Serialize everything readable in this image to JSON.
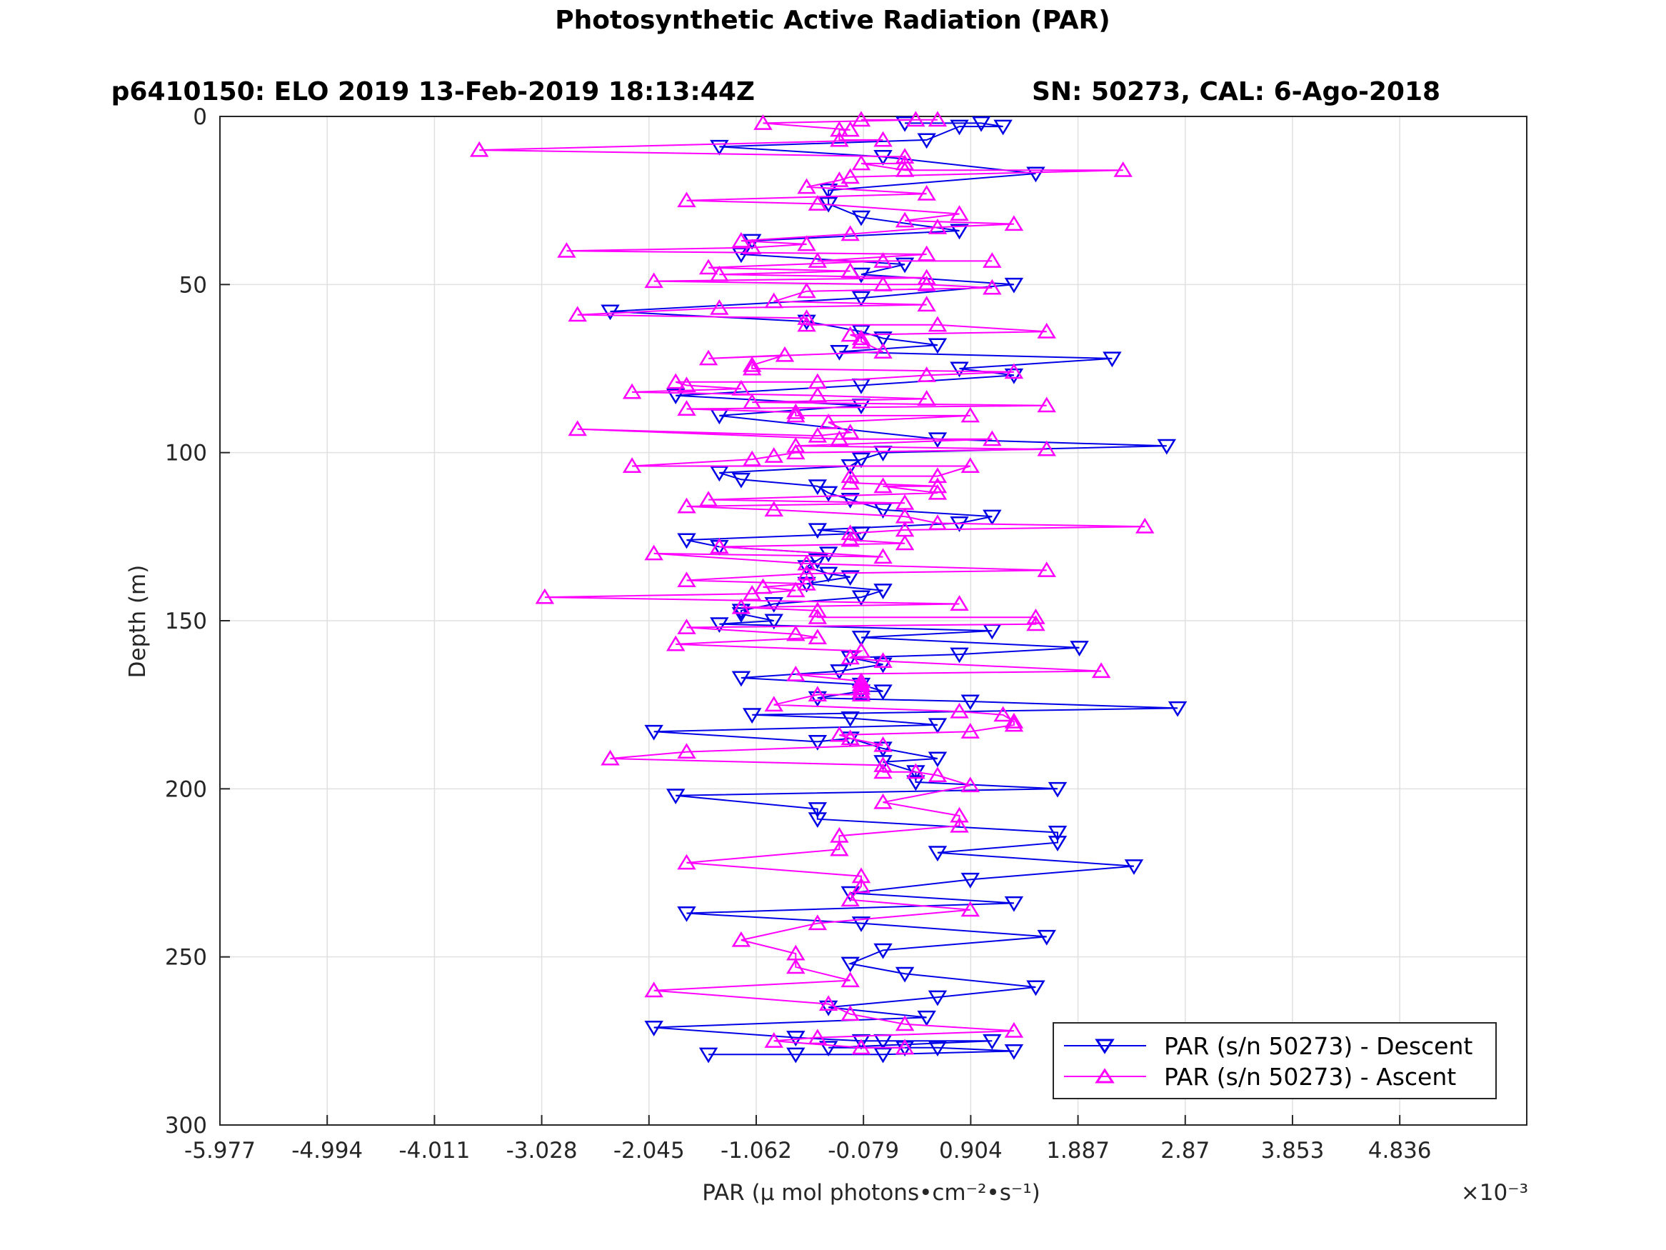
{
  "chart_data": {
    "type": "line",
    "title": "Photosynthetic Active Radiation (PAR)",
    "subtitle_left": "p6410150: ELO 2019 13-Feb-2019 18:13:44Z",
    "subtitle_right": "SN: 50273, CAL: 6-Ago-2018",
    "xlabel": "PAR (μ mol photons•cm⁻²•s⁻¹)",
    "ylabel": "Depth (m)",
    "x_multiplier": "×10⁻³",
    "xlim": [
      -5.977,
      6.0
    ],
    "ylim": [
      0,
      300
    ],
    "y_reversed": true,
    "grid": true,
    "legend_position": "bottom-right",
    "x_tick_labels": [
      "-5.977",
      "-4.994",
      "-4.011",
      "-3.028",
      "-2.045",
      "-1.062",
      "-0.079",
      "0.904",
      "1.887",
      "2.87",
      "3.853",
      "4.836"
    ],
    "y_tick_labels": [
      "0",
      "50",
      "100",
      "150",
      "200",
      "250",
      "300"
    ],
    "series": [
      {
        "name": "PAR (s/n 50273) - Descent",
        "color": "#0000e6",
        "marker": "triangle-down",
        "points": [
          [
            0.3,
            2
          ],
          [
            1.0,
            2
          ],
          [
            1.2,
            3
          ],
          [
            0.8,
            3
          ],
          [
            0.5,
            7
          ],
          [
            -1.4,
            9
          ],
          [
            0.1,
            12
          ],
          [
            1.5,
            17
          ],
          [
            -0.4,
            22
          ],
          [
            -0.4,
            26
          ],
          [
            -0.1,
            30
          ],
          [
            0.8,
            34
          ],
          [
            -1.1,
            37
          ],
          [
            -1.2,
            41
          ],
          [
            0.3,
            44
          ],
          [
            -0.1,
            47
          ],
          [
            1.3,
            50
          ],
          [
            -0.1,
            54
          ],
          [
            -2.4,
            58
          ],
          [
            -0.6,
            61
          ],
          [
            -0.1,
            64
          ],
          [
            0.1,
            66
          ],
          [
            0.6,
            68
          ],
          [
            -0.3,
            70
          ],
          [
            2.2,
            72
          ],
          [
            0.8,
            75
          ],
          [
            1.3,
            77
          ],
          [
            -0.1,
            80
          ],
          [
            -1.8,
            83
          ],
          [
            -0.1,
            86
          ],
          [
            -1.4,
            89
          ],
          [
            0.6,
            96
          ],
          [
            2.7,
            98
          ],
          [
            0.1,
            100
          ],
          [
            -0.1,
            102
          ],
          [
            -0.2,
            104
          ],
          [
            -1.4,
            106
          ],
          [
            -1.2,
            108
          ],
          [
            -0.5,
            110
          ],
          [
            -0.4,
            112
          ],
          [
            -0.2,
            114
          ],
          [
            0.1,
            117
          ],
          [
            1.1,
            119
          ],
          [
            0.8,
            121
          ],
          [
            -0.5,
            123
          ],
          [
            -0.1,
            124
          ],
          [
            -1.7,
            126
          ],
          [
            -1.4,
            128
          ],
          [
            -0.4,
            130
          ],
          [
            -0.5,
            132
          ],
          [
            -0.6,
            134
          ],
          [
            -0.4,
            136
          ],
          [
            -0.2,
            137
          ],
          [
            -0.6,
            139
          ],
          [
            0.1,
            141
          ],
          [
            -0.1,
            143
          ],
          [
            -0.9,
            145
          ],
          [
            -1.2,
            147
          ],
          [
            -1.2,
            148
          ],
          [
            -0.9,
            150
          ],
          [
            -1.4,
            151
          ],
          [
            1.1,
            153
          ],
          [
            -0.1,
            155
          ],
          [
            1.9,
            158
          ],
          [
            0.8,
            160
          ],
          [
            -0.2,
            161
          ],
          [
            0.1,
            163
          ],
          [
            -0.3,
            165
          ],
          [
            -1.2,
            167
          ],
          [
            -0.1,
            169
          ],
          [
            0.1,
            171
          ],
          [
            -0.1,
            171
          ],
          [
            -0.5,
            173
          ],
          [
            0.9,
            174
          ],
          [
            2.8,
            176
          ],
          [
            -1.1,
            178
          ],
          [
            -0.2,
            179
          ],
          [
            0.6,
            181
          ],
          [
            -2.0,
            183
          ],
          [
            -0.5,
            186
          ],
          [
            -0.2,
            185
          ],
          [
            0.1,
            188
          ],
          [
            0.6,
            191
          ],
          [
            0.1,
            192
          ],
          [
            0.4,
            195
          ],
          [
            0.4,
            198
          ],
          [
            1.7,
            200
          ],
          [
            -1.8,
            202
          ],
          [
            -0.5,
            206
          ],
          [
            -0.5,
            209
          ],
          [
            1.7,
            213
          ],
          [
            1.7,
            216
          ],
          [
            0.6,
            219
          ],
          [
            2.4,
            223
          ],
          [
            0.9,
            227
          ],
          [
            -0.2,
            231
          ],
          [
            1.3,
            234
          ],
          [
            -1.7,
            237
          ],
          [
            -0.1,
            240
          ],
          [
            1.6,
            244
          ],
          [
            0.1,
            248
          ],
          [
            -0.2,
            252
          ],
          [
            0.3,
            255
          ],
          [
            1.5,
            259
          ],
          [
            0.6,
            262
          ],
          [
            -0.4,
            265
          ],
          [
            0.5,
            268
          ],
          [
            -2.0,
            271
          ],
          [
            -0.7,
            274
          ],
          [
            -0.1,
            275
          ],
          [
            0.1,
            275
          ],
          [
            1.1,
            275
          ],
          [
            -0.4,
            277
          ],
          [
            0.3,
            277
          ],
          [
            0.6,
            277
          ],
          [
            1.3,
            278
          ],
          [
            0.1,
            279
          ],
          [
            -0.7,
            279
          ],
          [
            -1.5,
            279
          ]
        ]
      },
      {
        "name": "PAR (s/n 50273) - Ascent",
        "color": "#ff00ff",
        "marker": "triangle-up",
        "points": [
          [
            0.6,
            1
          ],
          [
            -0.1,
            1
          ],
          [
            0.4,
            1
          ],
          [
            -1.0,
            2
          ],
          [
            -0.2,
            4
          ],
          [
            -0.3,
            4
          ],
          [
            -0.3,
            7
          ],
          [
            0.1,
            7
          ],
          [
            -3.6,
            10
          ],
          [
            0.3,
            12
          ],
          [
            0.3,
            14
          ],
          [
            -0.1,
            14
          ],
          [
            0.3,
            16
          ],
          [
            2.3,
            16
          ],
          [
            -0.2,
            18
          ],
          [
            -0.3,
            19
          ],
          [
            -0.6,
            21
          ],
          [
            0.5,
            23
          ],
          [
            -1.7,
            25
          ],
          [
            -0.5,
            26
          ],
          [
            0.8,
            29
          ],
          [
            0.3,
            31
          ],
          [
            1.3,
            32
          ],
          [
            0.6,
            33
          ],
          [
            -0.2,
            35
          ],
          [
            -1.2,
            37
          ],
          [
            -0.6,
            38
          ],
          [
            -1.1,
            39
          ],
          [
            -2.8,
            40
          ],
          [
            0.5,
            41
          ],
          [
            -0.5,
            43
          ],
          [
            1.1,
            43
          ],
          [
            0.1,
            43
          ],
          [
            -1.5,
            45
          ],
          [
            -0.2,
            46
          ],
          [
            -1.4,
            47
          ],
          [
            0.5,
            48
          ],
          [
            -2.0,
            49
          ],
          [
            0.1,
            50
          ],
          [
            0.5,
            50
          ],
          [
            1.1,
            51
          ],
          [
            -0.6,
            52
          ],
          [
            -0.9,
            55
          ],
          [
            0.5,
            56
          ],
          [
            -1.4,
            57
          ],
          [
            -2.7,
            59
          ],
          [
            -0.6,
            60
          ],
          [
            -0.6,
            62
          ],
          [
            0.6,
            62
          ],
          [
            1.6,
            64
          ],
          [
            -0.2,
            65
          ],
          [
            -0.1,
            66
          ],
          [
            -0.1,
            67
          ],
          [
            0.1,
            70
          ],
          [
            -1.5,
            72
          ],
          [
            -0.8,
            71
          ],
          [
            -1.1,
            74
          ],
          [
            -1.1,
            75
          ],
          [
            1.3,
            76
          ],
          [
            0.5,
            77
          ],
          [
            -0.5,
            79
          ],
          [
            -1.8,
            79
          ],
          [
            -1.7,
            80
          ],
          [
            -1.2,
            81
          ],
          [
            -2.2,
            82
          ],
          [
            -0.5,
            83
          ],
          [
            0.5,
            84
          ],
          [
            -1.1,
            85
          ],
          [
            1.6,
            86
          ],
          [
            -1.7,
            87
          ],
          [
            -0.7,
            88
          ],
          [
            -0.7,
            89
          ],
          [
            0.9,
            89
          ],
          [
            -0.4,
            91
          ],
          [
            -0.2,
            94
          ],
          [
            -0.5,
            95
          ],
          [
            -2.7,
            93
          ],
          [
            -0.3,
            96
          ],
          [
            1.1,
            96
          ],
          [
            -0.7,
            98
          ],
          [
            1.6,
            99
          ],
          [
            -0.7,
            100
          ],
          [
            -0.9,
            101
          ],
          [
            -1.1,
            102
          ],
          [
            -2.2,
            104
          ],
          [
            0.9,
            104
          ],
          [
            0.6,
            107
          ],
          [
            -0.2,
            107
          ],
          [
            -0.2,
            109
          ],
          [
            0.6,
            110
          ],
          [
            0.1,
            110
          ],
          [
            0.6,
            112
          ],
          [
            -1.5,
            114
          ],
          [
            0.3,
            115
          ],
          [
            -1.7,
            116
          ],
          [
            -0.9,
            117
          ],
          [
            0.3,
            119
          ],
          [
            0.6,
            121
          ],
          [
            2.5,
            122
          ],
          [
            0.3,
            123
          ],
          [
            -0.2,
            124
          ],
          [
            -0.2,
            126
          ],
          [
            0.3,
            127
          ],
          [
            -1.4,
            128
          ],
          [
            0.1,
            131
          ],
          [
            -2.0,
            130
          ],
          [
            -0.6,
            133
          ],
          [
            1.6,
            135
          ],
          [
            -0.6,
            136
          ],
          [
            -1.7,
            138
          ],
          [
            -0.6,
            139
          ],
          [
            -1.0,
            140
          ],
          [
            -0.7,
            141
          ],
          [
            -1.1,
            142
          ],
          [
            -3.0,
            143
          ],
          [
            0.8,
            145
          ],
          [
            -1.2,
            146
          ],
          [
            -0.5,
            147
          ],
          [
            -0.5,
            149
          ],
          [
            1.5,
            149
          ],
          [
            1.5,
            151
          ],
          [
            -1.7,
            152
          ],
          [
            -0.7,
            154
          ],
          [
            -0.5,
            155
          ],
          [
            -1.8,
            157
          ],
          [
            -0.1,
            159
          ],
          [
            -0.2,
            161
          ],
          [
            0.1,
            162
          ],
          [
            2.1,
            165
          ],
          [
            -0.7,
            166
          ],
          [
            -0.1,
            168
          ],
          [
            -0.1,
            169
          ],
          [
            -0.1,
            170
          ],
          [
            -0.1,
            171
          ],
          [
            -0.1,
            172
          ],
          [
            -0.5,
            172
          ],
          [
            -0.9,
            175
          ],
          [
            0.8,
            177
          ],
          [
            1.2,
            178
          ],
          [
            1.3,
            180
          ],
          [
            1.3,
            181
          ],
          [
            0.9,
            183
          ],
          [
            -0.3,
            184
          ],
          [
            -0.2,
            185
          ],
          [
            0.1,
            187
          ],
          [
            -1.7,
            189
          ],
          [
            -2.4,
            191
          ],
          [
            0.1,
            193
          ],
          [
            0.1,
            195
          ],
          [
            0.4,
            195
          ],
          [
            0.6,
            196
          ],
          [
            0.9,
            199
          ],
          [
            0.1,
            204
          ],
          [
            0.8,
            208
          ],
          [
            0.8,
            211
          ],
          [
            -0.3,
            214
          ],
          [
            -0.3,
            218
          ],
          [
            -1.7,
            222
          ],
          [
            -0.1,
            226
          ],
          [
            -0.1,
            229
          ],
          [
            -0.2,
            233
          ],
          [
            0.9,
            236
          ],
          [
            -0.5,
            240
          ],
          [
            -1.2,
            245
          ],
          [
            -0.7,
            249
          ],
          [
            -0.7,
            253
          ],
          [
            -0.2,
            257
          ],
          [
            -2.0,
            260
          ],
          [
            -0.4,
            264
          ],
          [
            -0.2,
            267
          ],
          [
            0.3,
            270
          ],
          [
            1.3,
            272
          ],
          [
            -0.5,
            274
          ],
          [
            -0.9,
            275
          ],
          [
            -0.1,
            277
          ],
          [
            0.3,
            277
          ]
        ]
      }
    ]
  }
}
